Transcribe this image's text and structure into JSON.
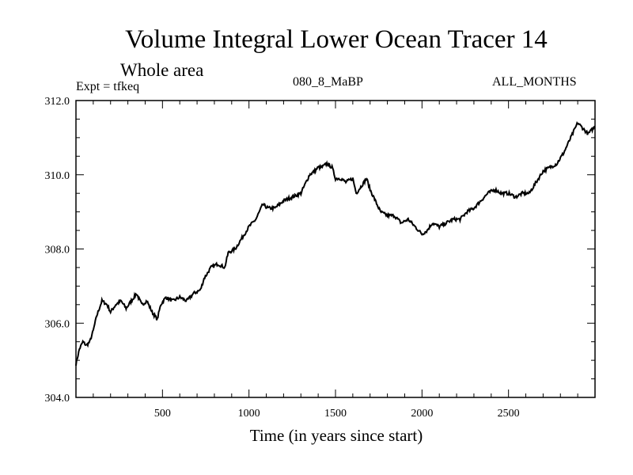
{
  "header": {
    "title": "Volume Integral Lower Ocean Tracer 14",
    "subtitle": "Whole area",
    "experiment": "Expt = tfkeq",
    "run_id": "080_8_MaBP",
    "months": "ALL_MONTHS"
  },
  "chart_data": {
    "type": "line",
    "title": "Volume Integral Lower Ocean Tracer 14",
    "xlabel": "Time (in years since start)",
    "ylabel": "",
    "xlim": [
      0,
      3000
    ],
    "ylim": [
      304.0,
      312.0
    ],
    "x_ticks": [
      500,
      1000,
      1500,
      2000,
      2500
    ],
    "y_ticks": [
      "304.0",
      "306.0",
      "308.0",
      "310.0",
      "312.0"
    ],
    "line_color": "#000000",
    "series": [
      {
        "x": [
          0,
          20,
          40,
          60,
          80,
          100,
          120,
          150,
          180,
          200,
          230,
          260,
          290,
          320,
          350,
          380,
          410,
          440,
          470,
          490,
          520,
          560,
          600,
          640,
          680,
          720,
          740,
          780,
          820,
          860,
          880,
          920,
          960,
          1000,
          1040,
          1080,
          1110,
          1150,
          1200,
          1250,
          1300,
          1330,
          1350,
          1380,
          1400,
          1420,
          1450,
          1480,
          1500,
          1530,
          1560,
          1600,
          1620,
          1650,
          1680,
          1700,
          1730,
          1760,
          1800,
          1840,
          1880,
          1920,
          1960,
          2000,
          2030,
          2060,
          2100,
          2140,
          2180,
          2220,
          2260,
          2300,
          2340,
          2380,
          2420,
          2460,
          2500,
          2540,
          2580,
          2620,
          2660,
          2700,
          2740,
          2780,
          2820,
          2860,
          2880,
          2900,
          2920,
          2940,
          2960,
          2980,
          3000
        ],
        "y": [
          304.9,
          305.3,
          305.5,
          305.4,
          305.5,
          305.8,
          306.2,
          306.6,
          306.5,
          306.3,
          306.5,
          306.6,
          306.4,
          306.6,
          306.8,
          306.5,
          306.6,
          306.3,
          306.1,
          306.5,
          306.7,
          306.6,
          306.7,
          306.6,
          306.8,
          306.9,
          307.2,
          307.5,
          307.6,
          307.5,
          307.9,
          308.0,
          308.3,
          308.6,
          308.8,
          309.2,
          309.1,
          309.1,
          309.3,
          309.4,
          309.5,
          309.8,
          310.0,
          310.1,
          310.2,
          310.2,
          310.3,
          310.2,
          309.9,
          309.9,
          309.8,
          309.9,
          309.5,
          309.7,
          309.9,
          309.6,
          309.3,
          309.0,
          308.9,
          308.9,
          308.7,
          308.8,
          308.6,
          308.4,
          308.5,
          308.7,
          308.6,
          308.7,
          308.8,
          308.8,
          309.0,
          309.1,
          309.3,
          309.5,
          309.6,
          309.5,
          309.5,
          309.4,
          309.5,
          309.5,
          309.8,
          310.1,
          310.2,
          310.3,
          310.6,
          311.0,
          311.2,
          311.4,
          311.3,
          311.2,
          311.1,
          311.2,
          311.3
        ]
      }
    ]
  }
}
